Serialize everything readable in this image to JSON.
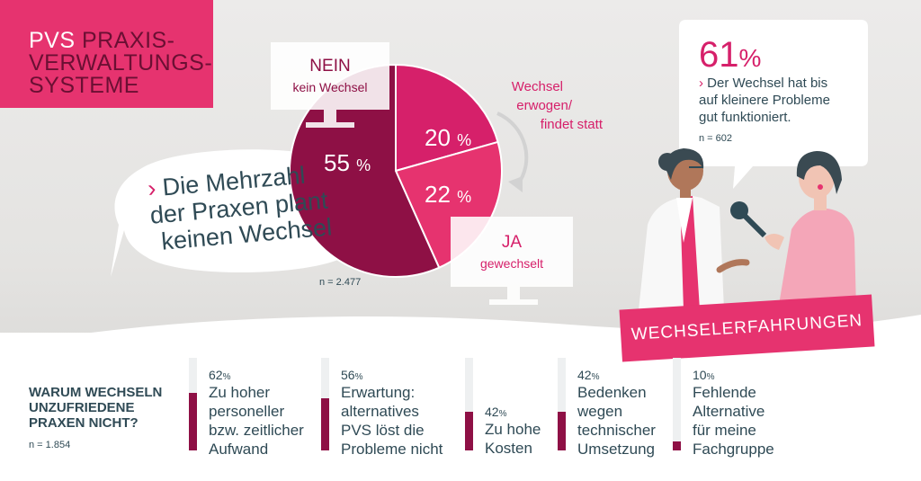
{
  "title": {
    "line1_a": "PVS",
    "line1_b": "PRAXIS-",
    "line2": "VERWALTUNGS-",
    "line3": "SYSTEME"
  },
  "pie": {
    "nein_title": "NEIN",
    "nein_sub": "kein Wechsel",
    "ja_title": "JA",
    "ja_sub": "gewechselt",
    "erwogen_1": "Wechsel",
    "erwogen_2": "erwogen/",
    "erwogen_3": "findet statt",
    "n": "n = 2.477",
    "percent_sign": "%"
  },
  "bubble": {
    "arrow": "›",
    "line1": "Die Mehrzahl",
    "line2": "der Praxen plant",
    "line3": "keinen Wechsel"
  },
  "quote": {
    "value": "61",
    "percent_sign": "%",
    "arrow": "›",
    "line1": "Der Wechsel hat bis",
    "line2": "auf kleinere Probleme",
    "line3": "gut funktioniert.",
    "n": "n = 602"
  },
  "badge": "WECHSELERFAHRUNGEN",
  "reasons_section": {
    "title_1": "WARUM WECHSELN",
    "title_2": "UNZUFRIEDENE",
    "title_3": "PRAXEN NICHT?",
    "n": "n = 1.854"
  },
  "colors": {
    "pink": "#e6336f",
    "dark_red": "#8e1045",
    "magenta": "#d6206a",
    "text": "#2f4a55"
  },
  "icons": [
    "arrow-chevron-icon",
    "curved-arrow-icon",
    "doctor-illustration",
    "interviewer-illustration",
    "microphone-icon"
  ],
  "chart_data": [
    {
      "type": "pie",
      "slices": [
        {
          "label": "NEIN kein Wechsel",
          "value": 55
        },
        {
          "label": "Wechsel erwogen/ findet statt",
          "value": 20
        },
        {
          "label": "JA gewechselt",
          "value": 22
        }
      ],
      "n": "n = 2.477"
    },
    {
      "type": "bar",
      "title": "WARUM WECHSELN UNZUFRIEDENE PRAXEN NICHT?",
      "categories": [
        "Zu hoher personeller bzw. zeitlicher Aufwand",
        "Erwartung: alternatives PVS löst die Probleme nicht",
        "Zu hohe Kosten",
        "Bedenken wegen technischer Umsetzung",
        "Fehlende Alternative für meine Fachgruppe"
      ],
      "values": [
        62,
        56,
        42,
        42,
        10
      ],
      "ylim": [
        0,
        100
      ],
      "n": "n = 1.854",
      "items": [
        {
          "pct": "62",
          "l1": "Zu hoher",
          "l2": "personeller",
          "l3": "bzw. zeitlicher",
          "l4": "Aufwand"
        },
        {
          "pct": "56",
          "l1": "Erwartung:",
          "l2": "alternatives",
          "l3": "PVS löst die",
          "l4": "Probleme nicht"
        },
        {
          "pct": "42",
          "l1": "Zu hohe",
          "l2": "Kosten",
          "l3": "",
          "l4": ""
        },
        {
          "pct": "42",
          "l1": "Bedenken",
          "l2": "wegen",
          "l3": "technischer",
          "l4": "Umsetzung"
        },
        {
          "pct": "10",
          "l1": "Fehlende",
          "l2": "Alternative",
          "l3": "für meine",
          "l4": "Fachgruppe"
        }
      ]
    }
  ]
}
